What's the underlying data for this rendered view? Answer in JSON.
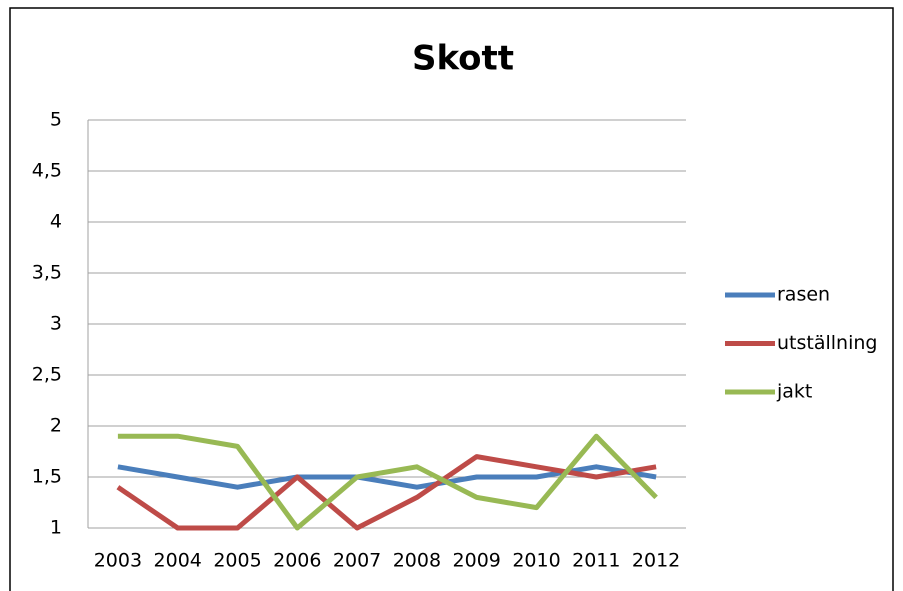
{
  "chart_data": {
    "type": "line",
    "title": "Skott",
    "categories": [
      "2003",
      "2004",
      "2005",
      "2006",
      "2007",
      "2008",
      "2009",
      "2010",
      "2011",
      "2012"
    ],
    "series": [
      {
        "name": "rasen",
        "color": "#4a7ebb",
        "values": [
          1.6,
          1.5,
          1.4,
          1.5,
          1.5,
          1.4,
          1.5,
          1.5,
          1.6,
          1.5
        ]
      },
      {
        "name": "utställning",
        "color": "#be4b48",
        "values": [
          1.4,
          1.0,
          1.0,
          1.5,
          1.0,
          1.3,
          1.7,
          1.6,
          1.5,
          1.6
        ]
      },
      {
        "name": "jakt",
        "color": "#98b954",
        "values": [
          1.9,
          1.9,
          1.8,
          1.0,
          1.5,
          1.6,
          1.3,
          1.2,
          1.9,
          1.3
        ]
      }
    ],
    "ylim": [
      1,
      5
    ],
    "yticks": [
      1,
      {
        "value": 1.5,
        "label": "1,5"
      },
      2,
      {
        "value": 2.5,
        "label": "2,5"
      },
      3,
      {
        "value": 3.5,
        "label": "3,5"
      },
      4,
      {
        "value": 4.5,
        "label": "4,5"
      },
      5
    ],
    "grid": true,
    "legend": "right"
  }
}
